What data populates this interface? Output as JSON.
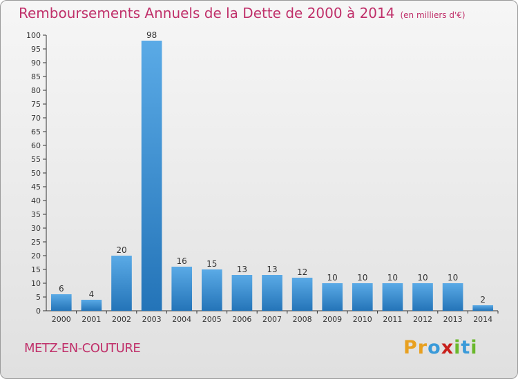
{
  "chart_data": {
    "type": "bar",
    "title": "Remboursements Annuels de la Dette de 2000 à 2014",
    "unit_note": "(en milliers d'€)",
    "categories": [
      "2000",
      "2001",
      "2002",
      "2003",
      "2004",
      "2005",
      "2006",
      "2007",
      "2008",
      "2009",
      "2010",
      "2011",
      "2012",
      "2013",
      "2014"
    ],
    "values": [
      6,
      4,
      20,
      98,
      16,
      15,
      13,
      13,
      12,
      10,
      10,
      10,
      10,
      10,
      2
    ],
    "ylim": [
      0,
      100
    ],
    "yticks": [
      0,
      5,
      10,
      15,
      20,
      25,
      30,
      35,
      40,
      45,
      50,
      55,
      60,
      65,
      70,
      75,
      80,
      85,
      90,
      95,
      100
    ],
    "xlabel": "",
    "ylabel": "",
    "grid": false,
    "bar_color": "#3a8fd4"
  },
  "footer": {
    "commune": "METZ-EN-COUTURE",
    "logo_letters": [
      "P",
      "r",
      "o",
      "x",
      "i",
      "t",
      "i"
    ],
    "logo_colors": [
      "#e8a020",
      "#e8a020",
      "#3a9ad9",
      "#c8201c",
      "#6ab82c",
      "#3a9ad9",
      "#6ab82c"
    ]
  },
  "colors": {
    "title": "#c0306a",
    "axis": "#333333"
  }
}
